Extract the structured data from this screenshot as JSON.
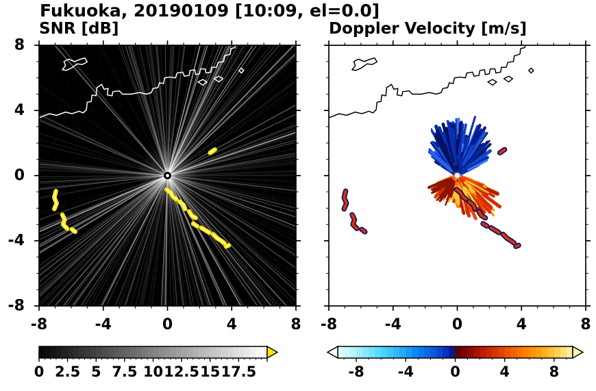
{
  "title": "Fukuoka, 20190109 [10:09, el=0.0]",
  "panels": [
    {
      "title": "SNR [dB]",
      "xlim": [
        -8,
        8
      ],
      "ylim": [
        -8,
        8
      ],
      "xticks": [
        -8,
        -4,
        0,
        4,
        8
      ],
      "yticks": [
        -8,
        -4,
        0,
        4,
        8
      ]
    },
    {
      "title": "Doppler Velocity [m/s]",
      "xlim": [
        -8,
        8
      ],
      "ylim": [
        -8,
        8
      ],
      "xticks": [
        -8,
        -4,
        0,
        4,
        8
      ],
      "yticks": [
        -8,
        -4,
        0,
        4,
        8
      ]
    }
  ],
  "colorbars": [
    {
      "id": "snr",
      "range": [
        0,
        20
      ],
      "tick_labels": [
        0,
        2.5,
        5,
        7.5,
        10,
        12.5,
        15,
        17.5
      ],
      "kind": "grayscale",
      "arrow": "right",
      "arrow_color": "#ffe800"
    },
    {
      "id": "doppler",
      "range": [
        -9.5,
        9.5
      ],
      "tick_labels": [
        -8,
        -4,
        0,
        4,
        8
      ],
      "kind": "diverging",
      "arrow": "both",
      "stops": [
        [
          0,
          "#eaffff"
        ],
        [
          0.08,
          "#a8f0ff"
        ],
        [
          0.17,
          "#5cdcff"
        ],
        [
          0.26,
          "#28b4fa"
        ],
        [
          0.34,
          "#0a82f0"
        ],
        [
          0.42,
          "#0a50dc"
        ],
        [
          0.47,
          "#0a28b4"
        ],
        [
          0.495,
          "#051478"
        ],
        [
          0.505,
          "#5a0000"
        ],
        [
          0.56,
          "#8c0a00"
        ],
        [
          0.63,
          "#c81e00"
        ],
        [
          0.71,
          "#e64b00"
        ],
        [
          0.79,
          "#ff7d00"
        ],
        [
          0.87,
          "#ffaa14"
        ],
        [
          0.94,
          "#ffd25a"
        ],
        [
          1,
          "#fff2b4"
        ]
      ]
    }
  ],
  "coastline": {
    "mainland": [
      [
        -8,
        3.55
      ],
      [
        -7.35,
        3.8
      ],
      [
        -6.9,
        3.7
      ],
      [
        -6.35,
        3.9
      ],
      [
        -5.95,
        3.8
      ],
      [
        -5.5,
        3.95
      ],
      [
        -5.25,
        3.85
      ],
      [
        -5.05,
        4.05
      ],
      [
        -5.0,
        4.5
      ],
      [
        -4.75,
        4.55
      ],
      [
        -4.7,
        4.95
      ],
      [
        -4.45,
        4.9
      ],
      [
        -4.4,
        5.4
      ],
      [
        -4.1,
        5.6
      ],
      [
        -3.95,
        5.3
      ],
      [
        -3.7,
        5.35
      ],
      [
        -3.75,
        4.95
      ],
      [
        -3.45,
        4.9
      ],
      [
        -3.4,
        5.15
      ],
      [
        -3.0,
        5.2
      ],
      [
        -2.8,
        5.0
      ],
      [
        -2.25,
        5.0
      ],
      [
        -1.75,
        5.1
      ],
      [
        -1.3,
        5.0
      ],
      [
        -1.0,
        5.1
      ],
      [
        -0.9,
        5.35
      ],
      [
        -0.6,
        5.4
      ],
      [
        -0.5,
        5.7
      ],
      [
        -0.25,
        5.65
      ],
      [
        -0.18,
        6.0
      ],
      [
        0.15,
        6.05
      ],
      [
        0.5,
        6.0
      ],
      [
        0.6,
        6.3
      ],
      [
        0.95,
        6.35
      ],
      [
        1.05,
        6.1
      ],
      [
        1.35,
        6.15
      ],
      [
        1.4,
        6.45
      ],
      [
        1.7,
        6.5
      ],
      [
        1.75,
        6.2
      ],
      [
        2.0,
        6.25
      ],
      [
        2.05,
        6.55
      ],
      [
        2.35,
        6.55
      ],
      [
        2.4,
        6.3
      ],
      [
        2.7,
        6.35
      ],
      [
        2.75,
        6.65
      ],
      [
        3.05,
        6.65
      ],
      [
        3.15,
        6.95
      ],
      [
        3.5,
        7.0
      ],
      [
        3.55,
        7.35
      ],
      [
        3.9,
        7.45
      ],
      [
        3.95,
        7.8
      ],
      [
        4.2,
        7.85
      ],
      [
        4.25,
        8.05
      ]
    ],
    "islands": [
      [
        [
          -6.55,
          6.5
        ],
        [
          -6.35,
          6.75
        ],
        [
          -6.45,
          7.0
        ],
        [
          -6.15,
          7.15
        ],
        [
          -5.8,
          7.0
        ],
        [
          -5.5,
          7.12
        ],
        [
          -5.15,
          7.22
        ],
        [
          -5.0,
          6.98
        ],
        [
          -5.3,
          6.82
        ],
        [
          -5.62,
          6.86
        ],
        [
          -5.95,
          6.62
        ],
        [
          -6.3,
          6.46
        ]
      ],
      [
        [
          1.9,
          5.75
        ],
        [
          2.2,
          5.9
        ],
        [
          2.45,
          5.75
        ],
        [
          2.2,
          5.55
        ]
      ],
      [
        [
          2.9,
          5.95
        ],
        [
          3.2,
          6.1
        ],
        [
          3.45,
          5.95
        ],
        [
          3.2,
          5.75
        ]
      ],
      [
        [
          4.45,
          6.45
        ],
        [
          4.6,
          6.6
        ],
        [
          4.75,
          6.45
        ],
        [
          4.6,
          6.3
        ]
      ]
    ]
  },
  "echoes": [
    [
      [
        -6.95,
        -0.95
      ],
      [
        -7.05,
        -1.35
      ],
      [
        -6.9,
        -1.7
      ],
      [
        -7.05,
        -2.05
      ]
    ],
    [
      [
        -6.55,
        -2.4
      ],
      [
        -6.4,
        -2.7
      ],
      [
        -6.5,
        -3.0
      ],
      [
        -6.25,
        -3.25
      ]
    ],
    [
      [
        -5.95,
        -3.3
      ],
      [
        -5.75,
        -3.45
      ]
    ],
    [
      [
        -0.05,
        -0.85
      ],
      [
        0.2,
        -1.05
      ],
      [
        0.35,
        -1.3
      ],
      [
        0.55,
        -1.45
      ]
    ],
    [
      [
        0.75,
        -1.6
      ],
      [
        1.0,
        -1.8
      ],
      [
        1.1,
        -2.05
      ]
    ],
    [
      [
        1.35,
        -2.2
      ],
      [
        1.5,
        -2.45
      ],
      [
        1.75,
        -2.6
      ]
    ],
    [
      [
        1.6,
        -2.95
      ],
      [
        1.85,
        -3.1
      ]
    ],
    [
      [
        2.1,
        -3.2
      ],
      [
        2.35,
        -3.35
      ],
      [
        2.6,
        -3.5
      ]
    ],
    [
      [
        2.85,
        -3.6
      ],
      [
        3.1,
        -3.85
      ],
      [
        3.35,
        -4.0
      ],
      [
        3.55,
        -4.15
      ]
    ],
    [
      [
        3.65,
        -4.35
      ],
      [
        3.82,
        -4.28
      ]
    ],
    [
      [
        2.65,
        1.4
      ],
      [
        2.95,
        1.6
      ]
    ]
  ],
  "chart_data": [
    {
      "type": "heatmap",
      "title": "SNR [dB]",
      "xlim": [
        -8,
        8
      ],
      "ylim": [
        -8,
        8
      ],
      "xticks": [
        -8,
        -4,
        0,
        4,
        8
      ],
      "yticks": [
        -8,
        -4,
        0,
        4,
        8
      ],
      "background": "#000000",
      "echo_color": "#ffe800",
      "colorbar": {
        "range": [
          0,
          20
        ],
        "tick_labels": [
          0,
          2.5,
          5,
          7.5,
          10,
          12.5,
          15,
          17.5
        ],
        "colormap": "black-to-white grayscale with yellow overflow arrow"
      },
      "features": [
        "faint gray radial radar beams emanating from the origin over a black background",
        "dark data-gap wedge toward the north-northwest of the radar",
        "strong yellow (off-scale) echo clusters near x=-7.1..-5.7, y=-0.9..-3.5",
        "yellow echo arc curving from (0,-0.9) to (3.8,-4.3)",
        "small isolated yellow echo near (2.8,1.5)",
        "coastline of Fukuoka drawn in white across the top of the panel"
      ]
    },
    {
      "type": "heatmap",
      "title": "Doppler Velocity [m/s]",
      "xlim": [
        -8,
        8
      ],
      "ylim": [
        -8,
        8
      ],
      "xticks": [
        -8,
        -4,
        0,
        4,
        8
      ],
      "yticks": [
        -8,
        -4,
        0,
        4,
        8
      ],
      "background": "#ffffff",
      "colorbar": {
        "range": [
          -9.5,
          9.5
        ],
        "tick_labels": [
          -8,
          -4,
          0,
          4,
          8
        ],
        "colormap": "white-cyan-blue-navy to dark red-red-orange-pale yellow diverging"
      },
      "fans": {
        "toward": {
          "az_range": [
            -58,
            64
          ],
          "r_max": 3.5,
          "colors": [
            "#051c8c",
            "#0a2fb4",
            "#1246d2",
            "#2a62e6",
            "#0a1e6e",
            "#3c78f0"
          ]
        },
        "away": {
          "az_range": [
            108,
            252
          ],
          "r_max": 3.2,
          "colors": [
            "#ff8200",
            "#ff6400",
            "#f04600",
            "#d72d00",
            "#b41e00",
            "#ff9b14"
          ]
        }
      },
      "features": [
        "blue (negative, toward-radar) velocity fan north of the radar, spiky edge, radius up to ~3.5",
        "darkest navy velocities concentrated left of the fan centerline",
        "orange-red (positive, away-from-radar) velocity fan south of the radar, radius up to ~3",
        "isolated red echoes fringed with dark blue matching the SNR echo clusters",
        "coastline drawn in black over the white background"
      ]
    }
  ]
}
